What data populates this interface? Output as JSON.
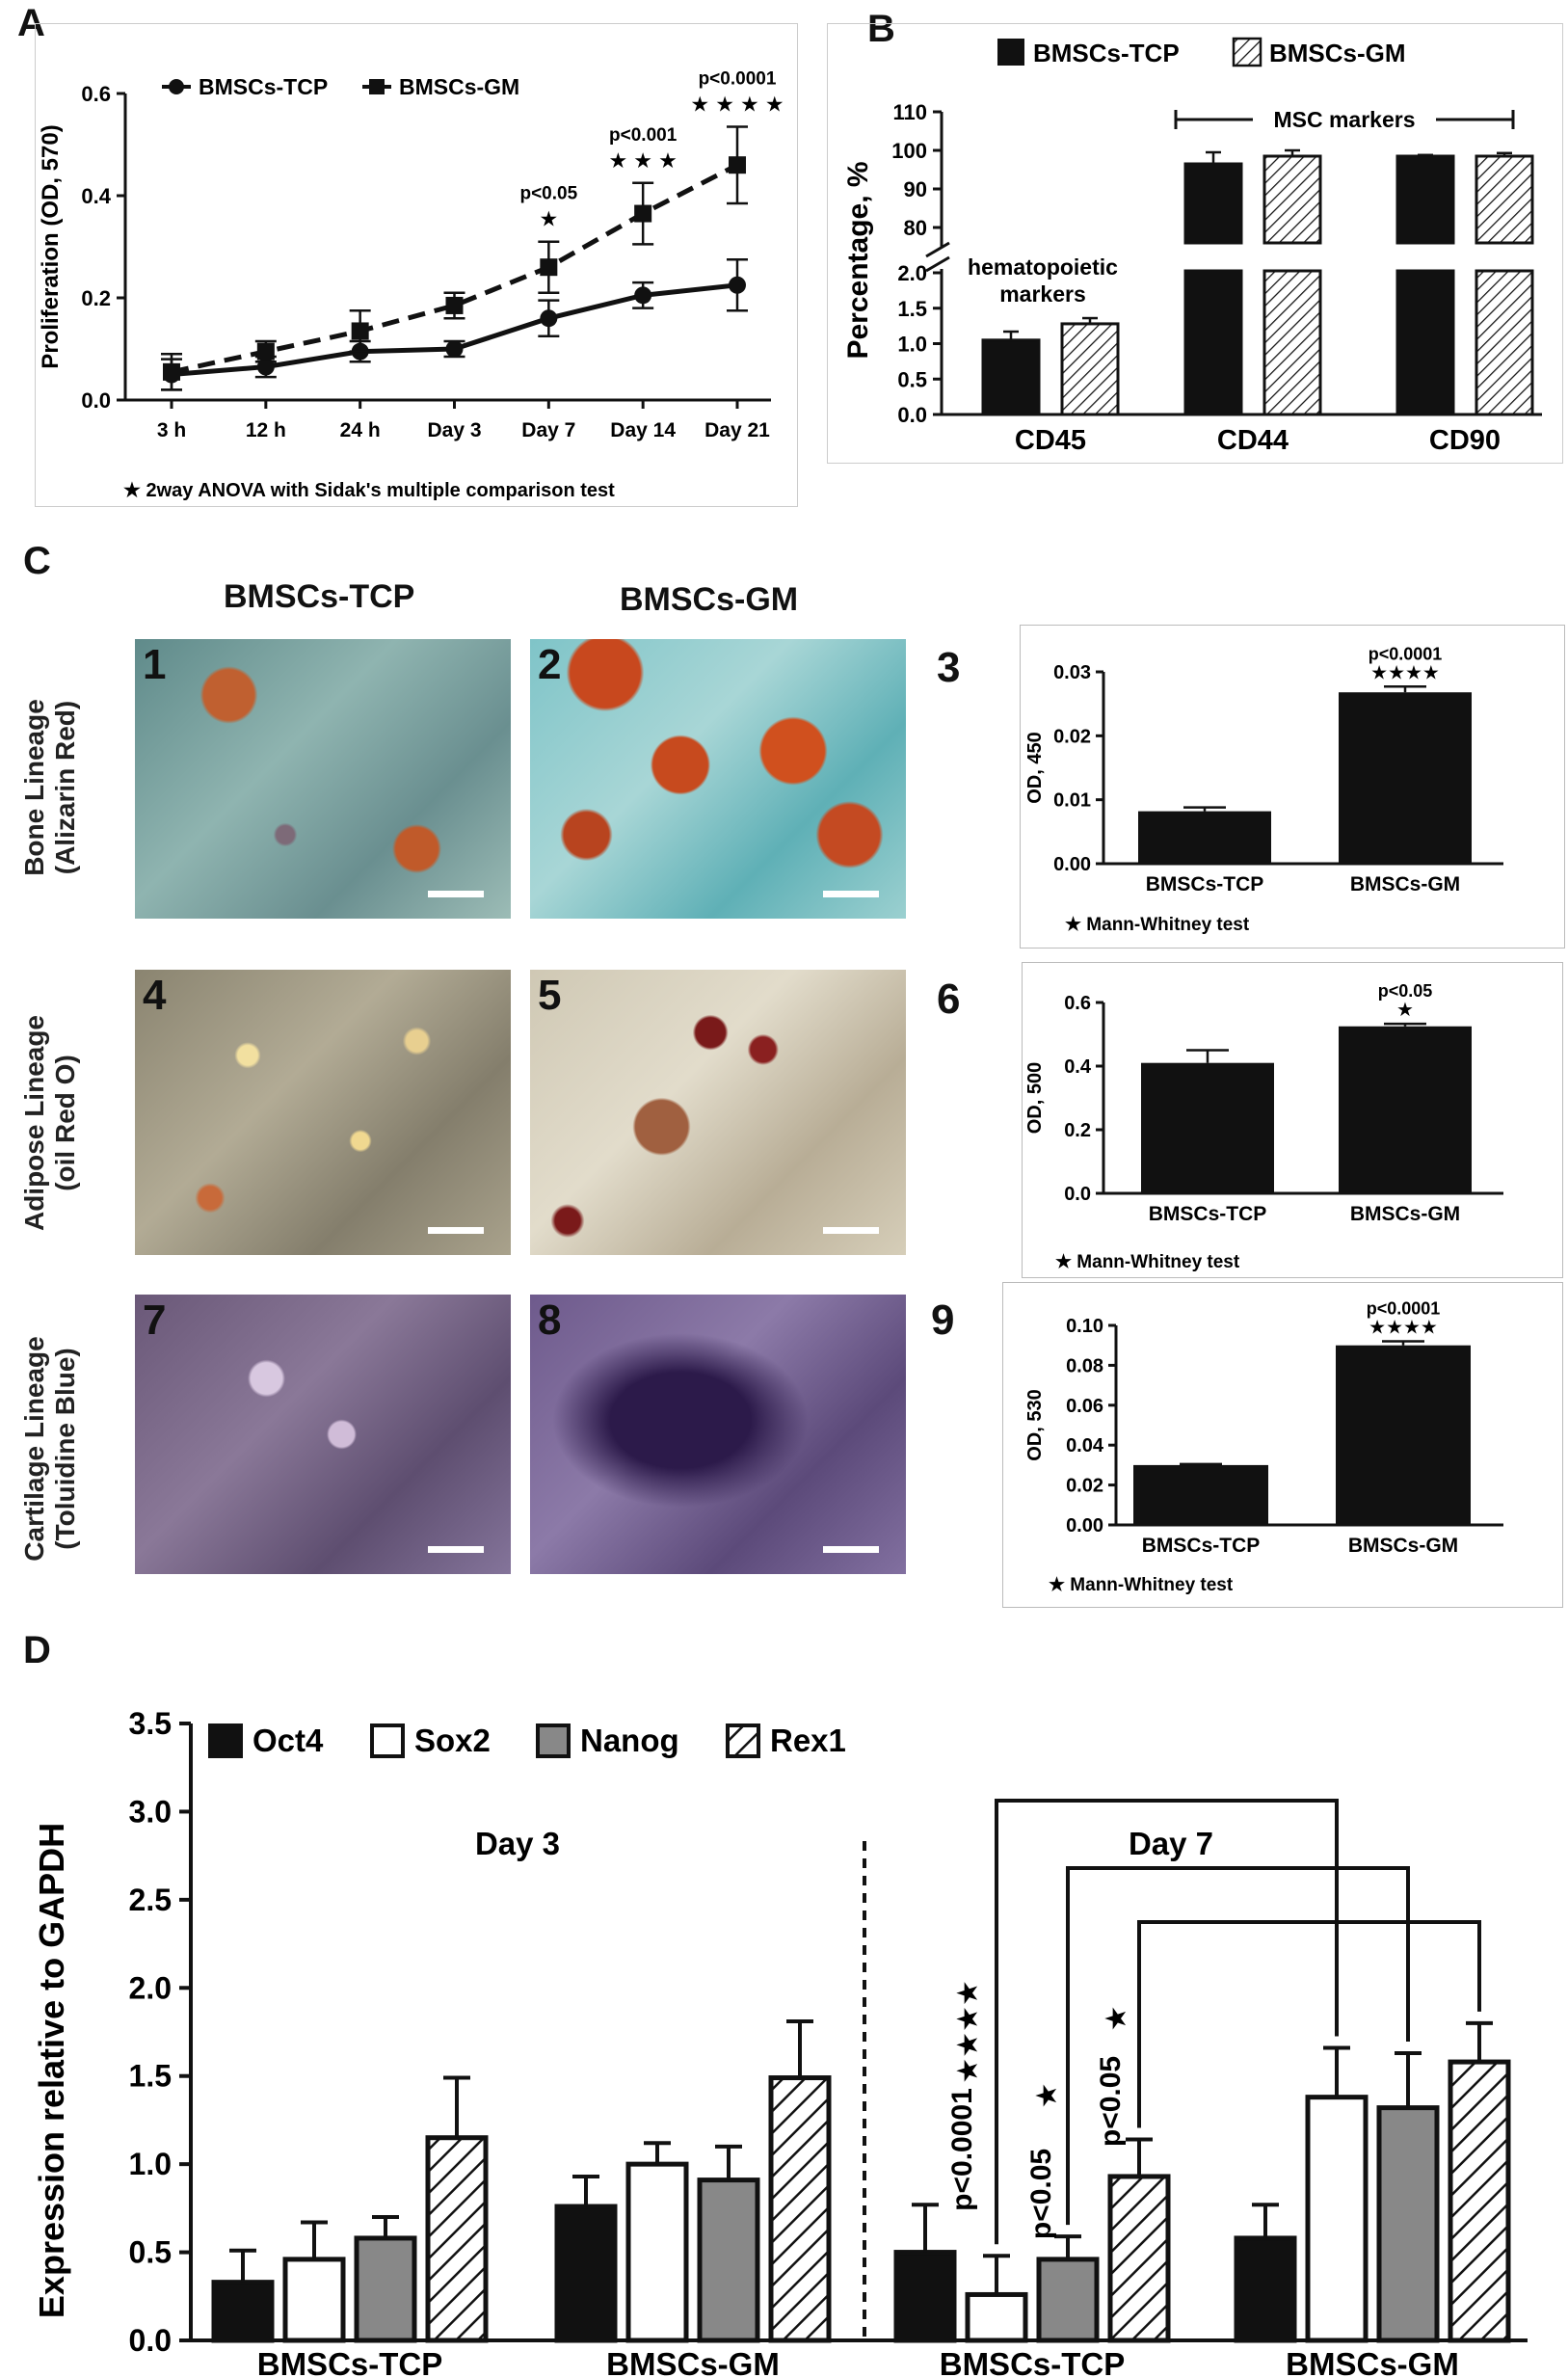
{
  "panels": {
    "a": "A",
    "b": "B",
    "c": "C",
    "d": "D"
  },
  "colors": {
    "black": "#111111",
    "grey": "#888888",
    "white": "#ffffff"
  },
  "panelA": {
    "chart_data": {
      "type": "line",
      "x": [
        "3 h",
        "12 h",
        "24 h",
        "Day 3",
        "Day 7",
        "Day 14",
        "Day 21"
      ],
      "ylabel": "Proliferation (OD, 570)",
      "ylim": [
        0,
        0.6
      ],
      "yticks": [
        "0.0",
        "0.2",
        "0.4",
        "0.6"
      ],
      "series": [
        {
          "name": "BMSCs-TCP",
          "values": [
            0.05,
            0.065,
            0.095,
            0.1,
            0.16,
            0.205,
            0.225
          ],
          "err": [
            0.03,
            0.02,
            0.02,
            0.015,
            0.035,
            0.025,
            0.05
          ]
        },
        {
          "name": "BMSCs-GM",
          "values": [
            0.055,
            0.095,
            0.135,
            0.185,
            0.26,
            0.365,
            0.46
          ],
          "err": [
            0.035,
            0.02,
            0.04,
            0.025,
            0.05,
            0.06,
            0.075
          ]
        }
      ],
      "annotations": [
        {
          "x": "Day 7",
          "p": "p<0.05",
          "stars": "★"
        },
        {
          "x": "Day 14",
          "p": "p<0.001",
          "stars": "★ ★ ★"
        },
        {
          "x": "Day 21",
          "p": "p<0.0001",
          "stars": "★ ★ ★ ★"
        }
      ],
      "footnote": "2way ANOVA with Sidak's multiple comparison test"
    }
  },
  "panelB": {
    "chart_data": {
      "type": "bar",
      "categories": [
        "CD45",
        "CD44",
        "CD90"
      ],
      "ylabel": "Percentage, %",
      "yticks_low": [
        "0.0",
        "0.5",
        "1.0",
        "1.5",
        "2.0"
      ],
      "yticks_high": [
        "80",
        "90",
        "100",
        "110"
      ],
      "series": [
        {
          "name": "BMSCs-TCP",
          "values": [
            1.05,
            96.5,
            98.5
          ],
          "err": [
            0.12,
            3,
            0.3
          ]
        },
        {
          "name": "BMSCs-GM",
          "values": [
            1.28,
            98.5,
            98.5
          ],
          "err": [
            0.08,
            1.5,
            0.8
          ]
        }
      ],
      "group_labels": {
        "hematopoietic": "hematopoietic\nmarkers",
        "msc": "MSC markers"
      }
    }
  },
  "panelC": {
    "col_labels": [
      "BMSCs-TCP",
      "BMSCs-GM"
    ],
    "row_labels": [
      "Bone Lineage\n(Alizarin Red)",
      "Adipose Lineage\n(oil Red O)",
      "Cartilage Lineage\n(Toluidine Blue)"
    ],
    "image_tags": [
      "1",
      "2",
      "4",
      "5",
      "7",
      "8"
    ],
    "chart_tags": [
      "3",
      "6",
      "9"
    ],
    "charts": [
      {
        "type": "bar",
        "categories": [
          "BMSCs-TCP",
          "BMSCs-GM"
        ],
        "values": [
          0.0082,
          0.0268
        ],
        "err": [
          0.0006,
          0.0009
        ],
        "ylabel": "OD, 450",
        "ylim": [
          0,
          0.03
        ],
        "yticks": [
          "0.00",
          "0.01",
          "0.02",
          "0.03"
        ],
        "p": "p<0.0001",
        "stars": "★★★★",
        "footnote": "Mann-Whitney test"
      },
      {
        "type": "bar",
        "categories": [
          "BMSCs-TCP",
          "BMSCs-GM"
        ],
        "values": [
          0.41,
          0.525
        ],
        "err": [
          0.04,
          0.008
        ],
        "ylabel": "OD, 500",
        "ylim": [
          0,
          0.6
        ],
        "yticks": [
          "0.0",
          "0.2",
          "0.4",
          "0.6"
        ],
        "p": "p<0.05",
        "stars": "★",
        "footnote": "Mann-Whitney test"
      },
      {
        "type": "bar",
        "categories": [
          "BMSCs-TCP",
          "BMSCs-GM"
        ],
        "values": [
          0.03,
          0.09
        ],
        "err": [
          0.0005,
          0.002
        ],
        "ylabel": "OD, 530",
        "ylim": [
          0,
          0.1
        ],
        "yticks": [
          "0.00",
          "0.02",
          "0.04",
          "0.06",
          "0.08",
          "0.10"
        ],
        "p": "p<0.0001",
        "stars": "★★★★",
        "footnote": "Mann-Whitney test"
      }
    ]
  },
  "panelD": {
    "chart_data": {
      "type": "bar",
      "ylabel": "Expression relative to GAPDH",
      "ylim": [
        0,
        3.5
      ],
      "yticks": [
        "0.0",
        "0.5",
        "1.0",
        "1.5",
        "2.0",
        "2.5",
        "3.0",
        "3.5"
      ],
      "periods": [
        "Day 3",
        "Day 7"
      ],
      "categories": [
        "BMSCs-TCP",
        "BMSCs-GM",
        "BMSCs-TCP",
        "BMSCs-GM"
      ],
      "series": [
        {
          "name": "Oct4",
          "values": [
            0.33,
            0.76,
            0.5,
            0.58
          ],
          "err": [
            0.18,
            0.17,
            0.27,
            0.19
          ]
        },
        {
          "name": "Sox2",
          "values": [
            0.46,
            1.0,
            0.26,
            1.38
          ],
          "err": [
            0.21,
            0.12,
            0.22,
            0.28
          ]
        },
        {
          "name": "Nanog",
          "values": [
            0.58,
            0.91,
            0.46,
            1.32
          ],
          "err": [
            0.12,
            0.19,
            0.13,
            0.31
          ]
        },
        {
          "name": "Rex1",
          "values": [
            1.15,
            1.49,
            0.93,
            1.58
          ],
          "err": [
            0.34,
            0.32,
            0.21,
            0.22
          ]
        }
      ],
      "annotations": [
        {
          "p": "p<0.0001",
          "stars": "★★★★"
        },
        {
          "p": "p<0.05",
          "stars": "★"
        },
        {
          "p": "p<0.05",
          "stars": "★"
        }
      ]
    }
  }
}
